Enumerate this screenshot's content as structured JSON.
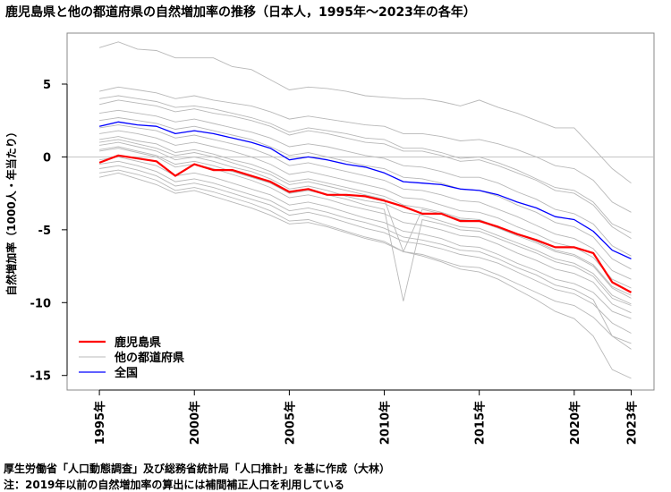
{
  "chart_data": {
    "type": "line",
    "title": "鹿児島県と他の都道府県の自然増加率の推移（日本人，1995年～2023年の各年）",
    "ylabel": "自然増加率（1000人・年当たり）",
    "xlabel": "",
    "ylim": [
      -16,
      8.5
    ],
    "xlim": [
      1993.3,
      2024.2
    ],
    "grid": "horizontal line at y=0",
    "legend_position": "bottom-left",
    "x_ticks": [
      1995,
      2000,
      2005,
      2010,
      2015,
      2020,
      2023
    ],
    "x_tick_labels": [
      "1995年",
      "2000年",
      "2005年",
      "2010年",
      "2015年",
      "2020年",
      "2023年"
    ],
    "y_ticks": [
      5,
      0,
      -5,
      -10,
      -15
    ],
    "y_tick_labels": [
      "5",
      "0",
      "-5",
      "-10",
      "-15"
    ],
    "x": [
      1995,
      1996,
      1997,
      1998,
      1999,
      2000,
      2001,
      2002,
      2003,
      2004,
      2005,
      2006,
      2007,
      2008,
      2009,
      2010,
      2011,
      2012,
      2013,
      2014,
      2015,
      2016,
      2017,
      2018,
      2019,
      2020,
      2021,
      2022,
      2023
    ],
    "series": [
      {
        "name": "鹿児島県",
        "color": "#ff0000",
        "width": 2.2,
        "values": [
          -0.4,
          0.1,
          -0.1,
          -0.3,
          -1.3,
          -0.5,
          -0.9,
          -0.9,
          -1.3,
          -1.7,
          -2.4,
          -2.2,
          -2.6,
          -2.6,
          -2.7,
          -3.0,
          -3.4,
          -3.9,
          -3.9,
          -4.4,
          -4.4,
          -4.8,
          -5.3,
          -5.7,
          -6.2,
          -6.2,
          -6.6,
          -8.6,
          -9.3
        ]
      },
      {
        "name": "他の都道府県",
        "color": "#b8b8b8",
        "width": 0.9,
        "values": [
          7.5,
          7.9,
          7.4,
          7.3,
          6.8,
          6.8,
          6.8,
          6.2,
          6.0,
          5.3,
          4.6,
          4.8,
          4.7,
          4.5,
          4.2,
          4.1,
          4.0,
          4.0,
          3.8,
          3.5,
          3.9,
          3.4,
          3.0,
          2.5,
          2.0,
          2.0,
          0.6,
          -0.8,
          -1.8
        ]
      },
      {
        "name": "全国",
        "color": "#0000ff",
        "width": 1.3,
        "values": [
          2.1,
          2.4,
          2.2,
          2.1,
          1.6,
          1.8,
          1.6,
          1.3,
          1.0,
          0.6,
          -0.2,
          0.0,
          -0.2,
          -0.5,
          -0.7,
          -1.1,
          -1.7,
          -1.8,
          -1.9,
          -2.2,
          -2.3,
          -2.6,
          -3.1,
          -3.5,
          -4.1,
          -4.3,
          -5.1,
          -6.4,
          -7.0
        ]
      }
    ],
    "background_series": [
      [
        4.5,
        4.8,
        4.6,
        4.4,
        4.0,
        4.2,
        3.9,
        3.7,
        3.5,
        3.1,
        2.6,
        2.8,
        2.6,
        2.4,
        2.2,
        2.1,
        1.6,
        1.6,
        1.4,
        1.1,
        1.2,
        0.9,
        0.5,
        0.0,
        -0.6,
        -0.8,
        -1.6,
        -3.1,
        -3.8
      ],
      [
        3.6,
        3.9,
        3.7,
        3.5,
        3.1,
        3.3,
        3.0,
        2.8,
        2.5,
        2.1,
        1.5,
        1.8,
        1.6,
        1.3,
        1.0,
        0.9,
        0.4,
        0.4,
        0.1,
        -0.3,
        -0.2,
        -0.6,
        -1.1,
        -1.6,
        -2.3,
        -2.5,
        -3.3,
        -4.8,
        -5.6
      ],
      [
        3.0,
        3.2,
        3.0,
        2.8,
        2.4,
        2.6,
        2.3,
        2.0,
        1.7,
        1.3,
        0.7,
        0.9,
        0.7,
        0.4,
        0.1,
        -0.1,
        -0.6,
        -0.7,
        -1.0,
        -1.4,
        -1.4,
        -1.8,
        -2.4,
        -2.9,
        -3.6,
        -3.9,
        -4.6,
        -6.1,
        -6.8
      ],
      [
        2.5,
        2.7,
        2.5,
        2.3,
        1.9,
        2.1,
        1.8,
        1.5,
        1.2,
        0.7,
        0.1,
        0.3,
        0.0,
        -0.3,
        -0.6,
        -0.8,
        -1.4,
        -1.5,
        -1.8,
        -2.2,
        -2.3,
        -2.7,
        -3.3,
        -3.8,
        -4.5,
        -4.8,
        -5.5,
        -7.0,
        -7.7
      ],
      [
        2.0,
        2.2,
        2.0,
        1.8,
        1.3,
        1.5,
        1.2,
        0.9,
        0.6,
        0.1,
        -0.6,
        -0.4,
        -0.7,
        -1.0,
        -1.3,
        -1.6,
        -2.2,
        -2.3,
        -2.6,
        -3.0,
        -3.1,
        -3.6,
        -4.1,
        -4.7,
        -5.3,
        -5.6,
        -6.3,
        -7.8,
        -8.4
      ],
      [
        1.6,
        1.8,
        1.6,
        1.3,
        0.8,
        1.0,
        0.7,
        0.4,
        0.0,
        -0.5,
        -1.2,
        -1.0,
        -1.3,
        -1.6,
        -1.9,
        -2.2,
        -2.8,
        -2.9,
        -3.3,
        -3.7,
        -3.8,
        -4.2,
        -4.8,
        -5.3,
        -5.9,
        -6.2,
        -6.9,
        -8.4,
        -9.0
      ],
      [
        1.2,
        1.4,
        1.1,
        0.9,
        0.3,
        0.5,
        0.2,
        -0.2,
        -0.5,
        -1.0,
        -1.7,
        -1.5,
        -1.8,
        -2.1,
        -2.4,
        -2.7,
        -3.3,
        -3.5,
        -3.8,
        -4.2,
        -4.3,
        -4.8,
        -5.3,
        -5.8,
        -6.4,
        -6.7,
        -7.4,
        -8.9,
        -9.5
      ],
      [
        0.8,
        1.0,
        0.7,
        0.4,
        -0.2,
        0.0,
        -0.3,
        -0.7,
        -1.0,
        -1.5,
        -2.2,
        -2.0,
        -2.3,
        -2.7,
        -3.0,
        -3.2,
        -3.8,
        -4.0,
        -4.4,
        -4.8,
        -4.9,
        -5.4,
        -5.9,
        -6.4,
        -7.0,
        -7.3,
        -8.0,
        -9.5,
        -10.1
      ],
      [
        0.4,
        0.6,
        0.3,
        0.0,
        -0.7,
        -0.5,
        -0.8,
        -1.2,
        -1.6,
        -2.1,
        -2.8,
        -2.6,
        -2.9,
        -3.3,
        -3.6,
        -3.9,
        -4.5,
        -4.7,
        -5.0,
        -5.4,
        -5.5,
        -6.0,
        -6.6,
        -7.1,
        -7.7,
        -8.0,
        -8.6,
        -10.1,
        -10.7
      ],
      [
        -0.2,
        0.0,
        -0.3,
        -0.6,
        -1.3,
        -1.1,
        -1.4,
        -1.8,
        -2.2,
        -2.6,
        -3.3,
        -3.1,
        -3.4,
        -3.8,
        -4.2,
        -4.5,
        -5.1,
        -5.3,
        -5.6,
        -6.1,
        -6.2,
        -6.7,
        -7.3,
        -7.8,
        -8.4,
        -8.7,
        -9.3,
        -10.6,
        -11.1
      ],
      [
        -0.8,
        -0.6,
        -0.9,
        -1.3,
        -2.0,
        -1.8,
        -2.1,
        -2.5,
        -2.9,
        -3.3,
        -4.0,
        -3.8,
        -4.1,
        -4.5,
        -4.9,
        -5.2,
        -5.8,
        -6.0,
        -6.3,
        -6.7,
        -6.9,
        -7.3,
        -7.9,
        -8.5,
        -9.1,
        -9.4,
        -10.1,
        -11.4,
        -12.1
      ],
      [
        -1.4,
        -1.1,
        -1.5,
        -1.9,
        -2.5,
        -2.3,
        -2.7,
        -3.1,
        -3.5,
        -4.0,
        -4.6,
        -4.5,
        -4.8,
        -5.2,
        -5.6,
        -5.9,
        -6.5,
        -6.7,
        -7.1,
        -7.5,
        -7.6,
        -8.1,
        -8.7,
        -9.3,
        -9.9,
        -10.2,
        -11.0,
        -12.3,
        -12.8
      ],
      [
        1.0,
        1.2,
        0.9,
        0.6,
        0.1,
        0.3,
        0.0,
        -0.4,
        -0.8,
        -1.2,
        -1.9,
        -1.7,
        -2.0,
        -2.3,
        -2.6,
        -2.9,
        -6.5,
        -3.6,
        -3.9,
        -4.3,
        -4.4,
        -4.9,
        -5.4,
        -5.9,
        -6.5,
        -6.8,
        -7.5,
        -9.0,
        -9.7
      ],
      [
        0.5,
        0.7,
        0.4,
        0.1,
        -0.5,
        -0.3,
        -0.6,
        -1.0,
        -1.4,
        -1.8,
        -2.5,
        -2.3,
        -2.6,
        -2.9,
        -3.3,
        -3.6,
        -9.9,
        -4.3,
        -4.6,
        -5.0,
        -5.1,
        -5.6,
        -6.1,
        -6.6,
        -7.2,
        -7.5,
        -8.2,
        -9.7,
        -10.2
      ],
      [
        4.0,
        4.2,
        4.0,
        3.8,
        3.4,
        3.5,
        3.3,
        3.0,
        2.7,
        2.3,
        1.7,
        2.0,
        1.8,
        1.6,
        1.3,
        1.2,
        0.6,
        0.6,
        0.3,
        -0.1,
        0.0,
        -0.4,
        -0.9,
        -1.5,
        -2.1,
        -2.3,
        -3.1,
        -4.6,
        -5.2
      ],
      [
        -0.5,
        -0.3,
        -0.6,
        -1.0,
        -1.7,
        -1.5,
        -1.8,
        -2.2,
        -2.6,
        -3.0,
        -3.7,
        -3.5,
        -3.8,
        -4.2,
        -4.5,
        -4.9,
        -5.5,
        -5.7,
        -6.0,
        -6.4,
        -6.5,
        -7.0,
        -7.6,
        -8.1,
        -8.8,
        -9.1,
        -9.8,
        -12.3,
        -13.2
      ],
      [
        -1.1,
        -0.9,
        -1.2,
        -1.6,
        -2.3,
        -2.1,
        -2.4,
        -2.8,
        -3.2,
        -3.7,
        -4.4,
        -4.3,
        -4.7,
        -5.1,
        -5.5,
        -5.8,
        -6.5,
        -6.8,
        -7.2,
        -7.7,
        -7.9,
        -8.4,
        -9.1,
        -9.8,
        -10.6,
        -11.1,
        -12.3,
        -14.6,
        -15.2
      ]
    ],
    "legend": [
      "鹿児島県",
      "他の都道府県",
      "全国"
    ]
  },
  "source": "厚生労働省「人口動態調査」及び総務省統計局「人口推計」を基に作成（大林）",
  "note": "注：2019年以前の自然増加率の算出には補間補正人口を利用している"
}
